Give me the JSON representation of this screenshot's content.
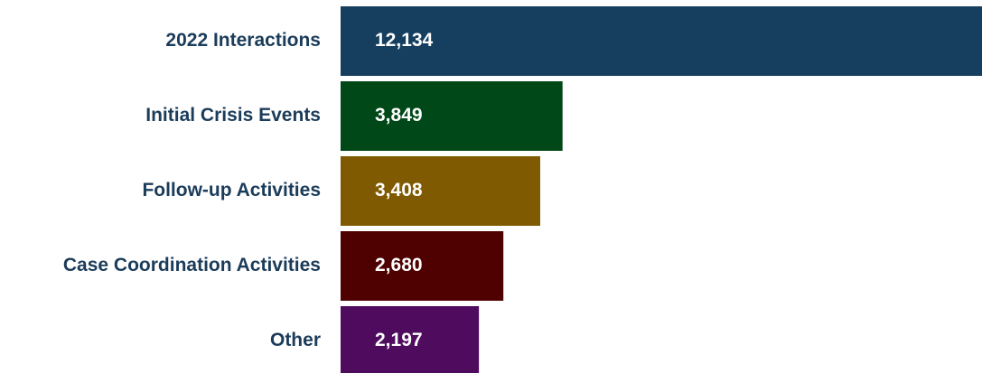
{
  "chart_data": {
    "type": "bar",
    "orientation": "horizontal",
    "categories": [
      "2022 Interactions",
      "Initial Crisis Events",
      "Follow-up Activities",
      "Case Coordination Activities",
      "Other"
    ],
    "values": [
      12134,
      3849,
      3408,
      2680,
      2197
    ],
    "value_labels": [
      "12,134",
      "3,849",
      "3,408",
      "2,680",
      "2,197"
    ],
    "colors": [
      "#163f5f",
      "#004817",
      "#7f5a00",
      "#4f0000",
      "#4f0c5f"
    ]
  }
}
